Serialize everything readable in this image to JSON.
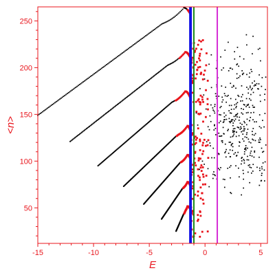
{
  "chart_data": {
    "type": "scatter",
    "title": "",
    "xlabel": "E",
    "ylabel": "<n>",
    "xlim": [
      -15,
      5.6
    ],
    "ylim": [
      12,
      265
    ],
    "x_ticks": [
      "-15",
      "-10",
      "-5",
      "0",
      "5"
    ],
    "x_tick_values": [
      -15,
      -10,
      -5,
      0,
      5
    ],
    "y_ticks": [
      "50",
      "100",
      "150",
      "200",
      "250"
    ],
    "y_tick_values": [
      50,
      100,
      150,
      200,
      250
    ],
    "grid": false,
    "legend": "none",
    "colors": {
      "axes": "#e8141b",
      "regular_points": "#000000",
      "chaotic_points": "#e8141b",
      "line_blue": "#1010e6",
      "line_green": "#1a8a1a",
      "line_magenta": "#d42ad4"
    },
    "vertical_lines": [
      {
        "x": -1.3,
        "color": "#1010e6"
      },
      {
        "x": -1.0,
        "color": "#1a8a1a"
      },
      {
        "x": 1.1,
        "color": "#d42ad4"
      }
    ],
    "branches": [
      {
        "x_start": -15.0,
        "y_start": 149,
        "x_peak": -1.9,
        "y_peak": 264,
        "x_end": -1.35,
        "y_end": 258,
        "red_from": -1.6
      },
      {
        "x_start": -12.1,
        "y_start": 121,
        "x_peak": -1.8,
        "y_peak": 217,
        "x_end": -1.35,
        "y_end": 211,
        "red_from": -2.4
      },
      {
        "x_start": -9.6,
        "y_start": 95,
        "x_peak": -1.8,
        "y_peak": 175,
        "x_end": -1.35,
        "y_end": 168,
        "red_from": -2.7
      },
      {
        "x_start": -7.3,
        "y_start": 73,
        "x_peak": -1.6,
        "y_peak": 138,
        "x_end": -1.35,
        "y_end": 133,
        "red_from": -2.6
      },
      {
        "x_start": -5.5,
        "y_start": 54,
        "x_peak": -1.6,
        "y_peak": 107,
        "x_end": -1.35,
        "y_end": 103,
        "red_from": -2.2
      },
      {
        "x_start": -3.9,
        "y_start": 38,
        "x_peak": -1.6,
        "y_peak": 78,
        "x_end": -1.35,
        "y_end": 74,
        "red_from": -2.0
      },
      {
        "x_start": -2.6,
        "y_start": 25,
        "x_peak": -1.6,
        "y_peak": 52,
        "x_end": -1.35,
        "y_end": 49,
        "red_from": -1.9
      }
    ],
    "chaotic_cloud": {
      "x_range": [
        -1.3,
        0.3
      ],
      "y_range": [
        18,
        230
      ]
    },
    "scatter_cloud": {
      "x_range": [
        -1.0,
        5.5
      ],
      "y_range": [
        60,
        262
      ],
      "center": [
        3.0,
        140
      ]
    }
  }
}
